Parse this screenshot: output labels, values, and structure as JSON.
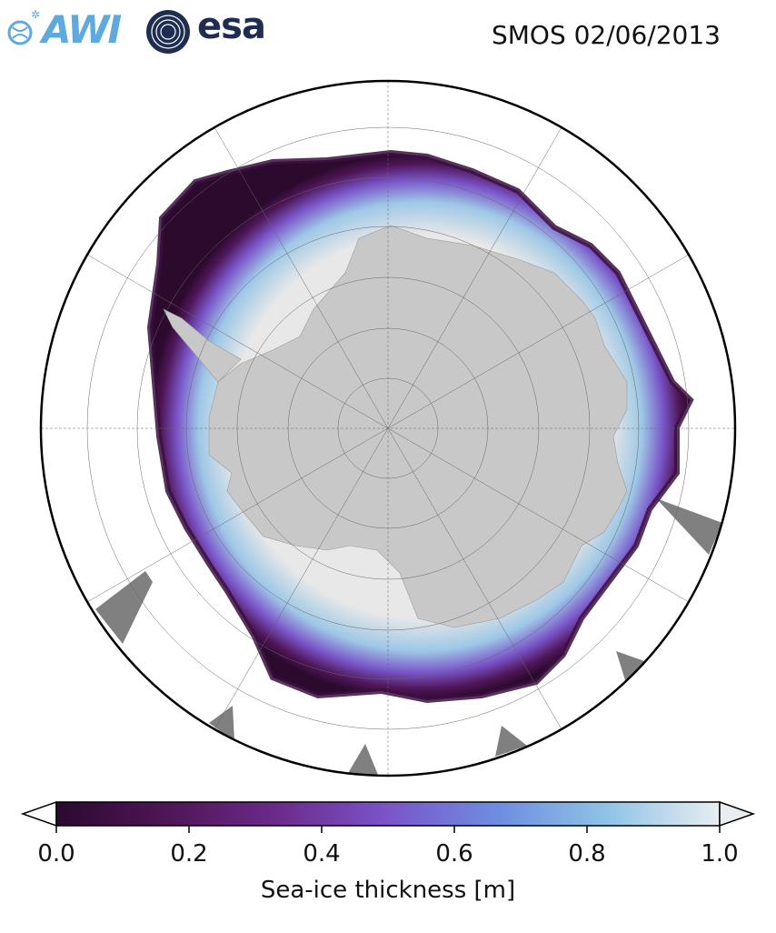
{
  "header": {
    "logo_awi": "AWI",
    "logo_esa": "esa",
    "title": "SMOS 02/06/2013"
  },
  "map": {
    "projection": "south-polar-stereographic",
    "land_color": "#c8c8c8",
    "ocean_color": "#ffffff",
    "thin_ice_color": "#3b0f3f",
    "thick_ice_color": "#e8e8e8",
    "gridlines": true
  },
  "colorbar": {
    "label": "Sea-ice thickness [m]",
    "ticks": [
      "0.0",
      "0.2",
      "0.4",
      "0.6",
      "0.8",
      "1.0"
    ],
    "range": [
      0.0,
      1.0
    ],
    "extend": "both",
    "colors": [
      "#2b0a2e",
      "#4f1657",
      "#6b2a8a",
      "#7a55c9",
      "#6e8fe0",
      "#8fc3e6",
      "#e8eef0"
    ]
  }
}
